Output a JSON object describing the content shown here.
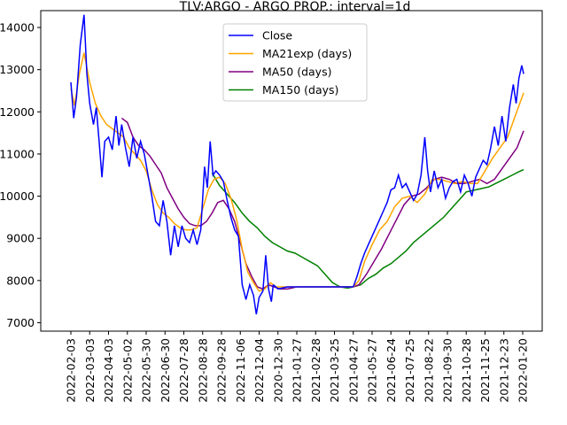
{
  "chart_data": {
    "type": "line",
    "title": "TLV:ARGO - ARGO PROP.: interval=1d",
    "xlabel": "",
    "ylabel": "",
    "ylim": [
      6800,
      14400
    ],
    "x_ticks": [
      "2022-02-03",
      "2022-03-03",
      "2022-04-03",
      "2022-05-02",
      "2022-05-30",
      "2022-06-30",
      "2022-07-28",
      "2022-08-28",
      "2022-09-28",
      "2022-11-06",
      "2022-12-04",
      "2020-12-30",
      "2021-01-27",
      "2021-02-28",
      "2021-03-25",
      "2021-04-27",
      "2021-05-27",
      "2021-06-24",
      "2021-07-25",
      "2021-08-22",
      "2021-09-30",
      "2021-10-28",
      "2021-11-25",
      "2021-12-23",
      "2022-01-20"
    ],
    "y_ticks": [
      7000,
      8000,
      9000,
      10000,
      11000,
      12000,
      13000,
      14000
    ],
    "y_tick_labels": [
      "7000",
      "8000",
      "9000",
      "10000",
      "11000",
      "12000",
      "13000",
      "14000"
    ],
    "grid": false,
    "legend_position": "upper center",
    "series": [
      {
        "name": "Close",
        "color": "#0000ff",
        "width": 1.5,
        "x": [
          0,
          0.3,
          0.6,
          1,
          1.3,
          1.6,
          2,
          2.3,
          2.6,
          3,
          3.3,
          3.6,
          4,
          4.3,
          4.6,
          5,
          5.3,
          5.6,
          6,
          6.3,
          6.6,
          7,
          7.3,
          7.6,
          8,
          8.3,
          8.6,
          9,
          9.3,
          9.6,
          10,
          10.3,
          10.6,
          11
        ],
        "y": [
          12700,
          11800,
          12400,
          14300,
          12800,
          12100,
          11400,
          10400,
          11500,
          11000,
          11900,
          11000,
          11600,
          10700,
          11300,
          10800,
          11300,
          10500,
          10100,
          9300,
          9700,
          9000,
          10000,
          8600,
          9400,
          8800,
          9200,
          8800,
          9300,
          10400,
          9900,
          8800,
          9900,
          11300
        ],
        "note": "points drawn by script"
      },
      {
        "name": "MA21exp (days)",
        "color": "#ffa500",
        "width": 1.5
      },
      {
        "name": "MA50 (days)",
        "color": "#800080",
        "width": 1.5
      },
      {
        "name": "MA150 (days)",
        "color": "#008000",
        "width": 1.5
      }
    ]
  }
}
